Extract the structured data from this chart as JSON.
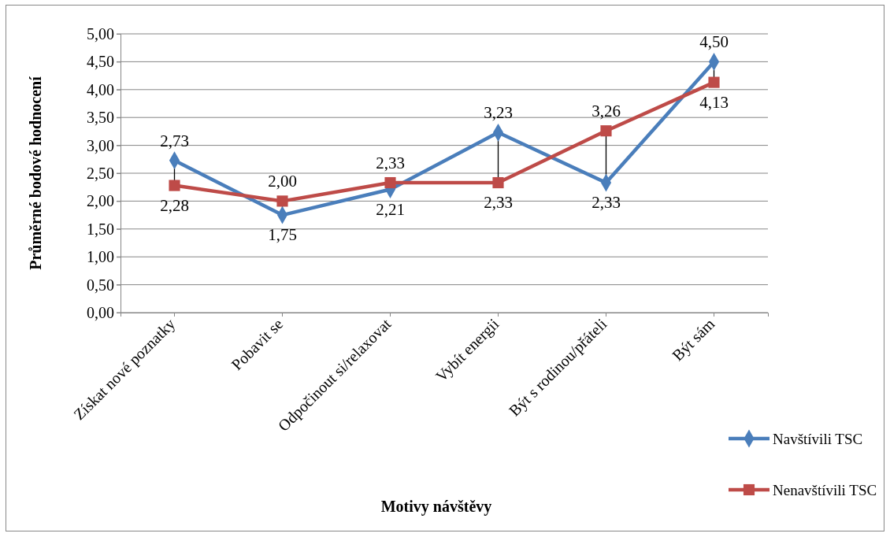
{
  "chart_data": {
    "type": "line",
    "xlabel": "Motivy návštěvy",
    "ylabel": "Průměrné bodové hodnocení",
    "categories": [
      "Získat nové poznatky",
      "Pobavit se",
      "Odpočinout si/relaxovat",
      "Vybít energii",
      "Být s rodinou/přáteli",
      "Být sám"
    ],
    "series": [
      {
        "name": "Navštívili TSC",
        "color": "#4a7ebb",
        "marker": "diamond",
        "values": [
          2.73,
          1.75,
          2.21,
          3.23,
          2.33,
          4.5
        ],
        "value_labels": [
          "2,73",
          "1,75",
          "2,21",
          "3,23",
          "2,33",
          "4,50"
        ]
      },
      {
        "name": "Nenavštívili TSC",
        "color": "#be4b48",
        "marker": "square",
        "values": [
          2.28,
          2.0,
          2.33,
          2.33,
          3.26,
          4.13
        ],
        "value_labels": [
          "2,28",
          "2,00",
          "2,33",
          "2,33",
          "3,26",
          "4,13"
        ]
      }
    ],
    "ylim": [
      0,
      5
    ],
    "yticks": [
      {
        "value": 0,
        "label": "0,00"
      },
      {
        "value": 0.5,
        "label": "0,50"
      },
      {
        "value": 1,
        "label": "1,00"
      },
      {
        "value": 1.5,
        "label": "1,50"
      },
      {
        "value": 2,
        "label": "2,00"
      },
      {
        "value": 2.5,
        "label": "2,50"
      },
      {
        "value": 3,
        "label": "3,00"
      },
      {
        "value": 3.5,
        "label": "3,50"
      },
      {
        "value": 4,
        "label": "4,00"
      },
      {
        "value": 4.5,
        "label": "4,50"
      },
      {
        "value": 5,
        "label": "5,00"
      }
    ],
    "grid": "y",
    "legend": "right"
  }
}
